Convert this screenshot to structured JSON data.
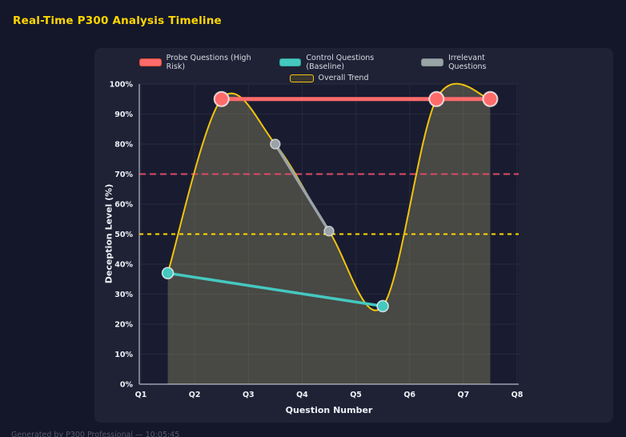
{
  "page": {
    "title": "Real-Time P300 Analysis Timeline",
    "footer": "Generated by P300 Professional — 10:05:45"
  },
  "colors": {
    "page_bg": "#14172a",
    "panel_bg": "#1f2235",
    "plot_bg": "#191c30",
    "title": "#ffd700",
    "grid": "rgba(255,255,255,0.06)",
    "spine": "#b7bac6"
  },
  "legend": {
    "items": [
      {
        "label": "Probe Questions (High Risk)",
        "fill": "#ff6b6b",
        "border": "#e74c3c"
      },
      {
        "label": "Control Questions (Baseline)",
        "fill": "#45c8bf",
        "border": "#2ea89f"
      },
      {
        "label": "Irrelevant Questions",
        "fill": "#9aa3a8",
        "border": "#7f8c8d"
      },
      {
        "label": "Overall Trend",
        "fill": "rgba(241,196,15,0.12)",
        "border": "#f1c40f"
      }
    ]
  },
  "chart_data": {
    "type": "line",
    "title": "Real-Time P300 Analysis Timeline",
    "xlabel": "Question Number",
    "ylabel": "Deception Level (%)",
    "x_ticks": [
      "Q1",
      "Q2",
      "Q3",
      "Q4",
      "Q5",
      "Q6",
      "Q7",
      "Q8"
    ],
    "x_tick_values": [
      1,
      2,
      3,
      4,
      5,
      6,
      7,
      8
    ],
    "x_range": [
      1,
      8
    ],
    "y_ticks": [
      "0%",
      "10%",
      "20%",
      "30%",
      "40%",
      "50%",
      "60%",
      "70%",
      "80%",
      "90%",
      "100%"
    ],
    "y_tick_values": [
      0,
      10,
      20,
      30,
      40,
      50,
      60,
      70,
      80,
      90,
      100
    ],
    "ylim": [
      0,
      100
    ],
    "grid": true,
    "legend_position": "top-center",
    "series": [
      {
        "name": "Overall Trend",
        "color": "#f1c40f",
        "width": 2,
        "smooth": true,
        "marker_size": 0,
        "area_fill": "rgba(240,230,140,0.22)",
        "x": [
          1.5,
          2.5,
          3.5,
          4.5,
          5.5,
          6.5,
          7.5
        ],
        "y": [
          37,
          95,
          80,
          51,
          26,
          95,
          95
        ]
      },
      {
        "name": "Control Questions (Baseline)",
        "color": "#45c8bf",
        "width": 3.5,
        "smooth": false,
        "marker_size": 7,
        "marker_edge": "rgba(255,255,255,0.75)",
        "x": [
          1.5,
          5.5
        ],
        "y": [
          37,
          26
        ]
      },
      {
        "name": "Irrelevant Questions",
        "color": "#9aa3a8",
        "width": 3.5,
        "smooth": false,
        "marker_size": 6,
        "marker_edge": "rgba(255,255,255,0.6)",
        "x": [
          3.5,
          4.5
        ],
        "y": [
          80,
          51
        ]
      },
      {
        "name": "Probe Questions (High Risk)",
        "color": "#ff6b6b",
        "width": 5,
        "smooth": false,
        "marker_size": 9,
        "marker_edge": "rgba(255,255,255,0.75)",
        "x": [
          2.5,
          6.5,
          7.5
        ],
        "y": [
          95,
          95,
          95
        ]
      }
    ],
    "thresholds": [
      {
        "label": "high-risk-threshold",
        "value": 70,
        "color": "#dc4a66",
        "dash": "8 5",
        "width": 2
      },
      {
        "label": "baseline-threshold",
        "value": 50,
        "color": "#ffd700",
        "dash": "5 5",
        "width": 2
      }
    ]
  }
}
